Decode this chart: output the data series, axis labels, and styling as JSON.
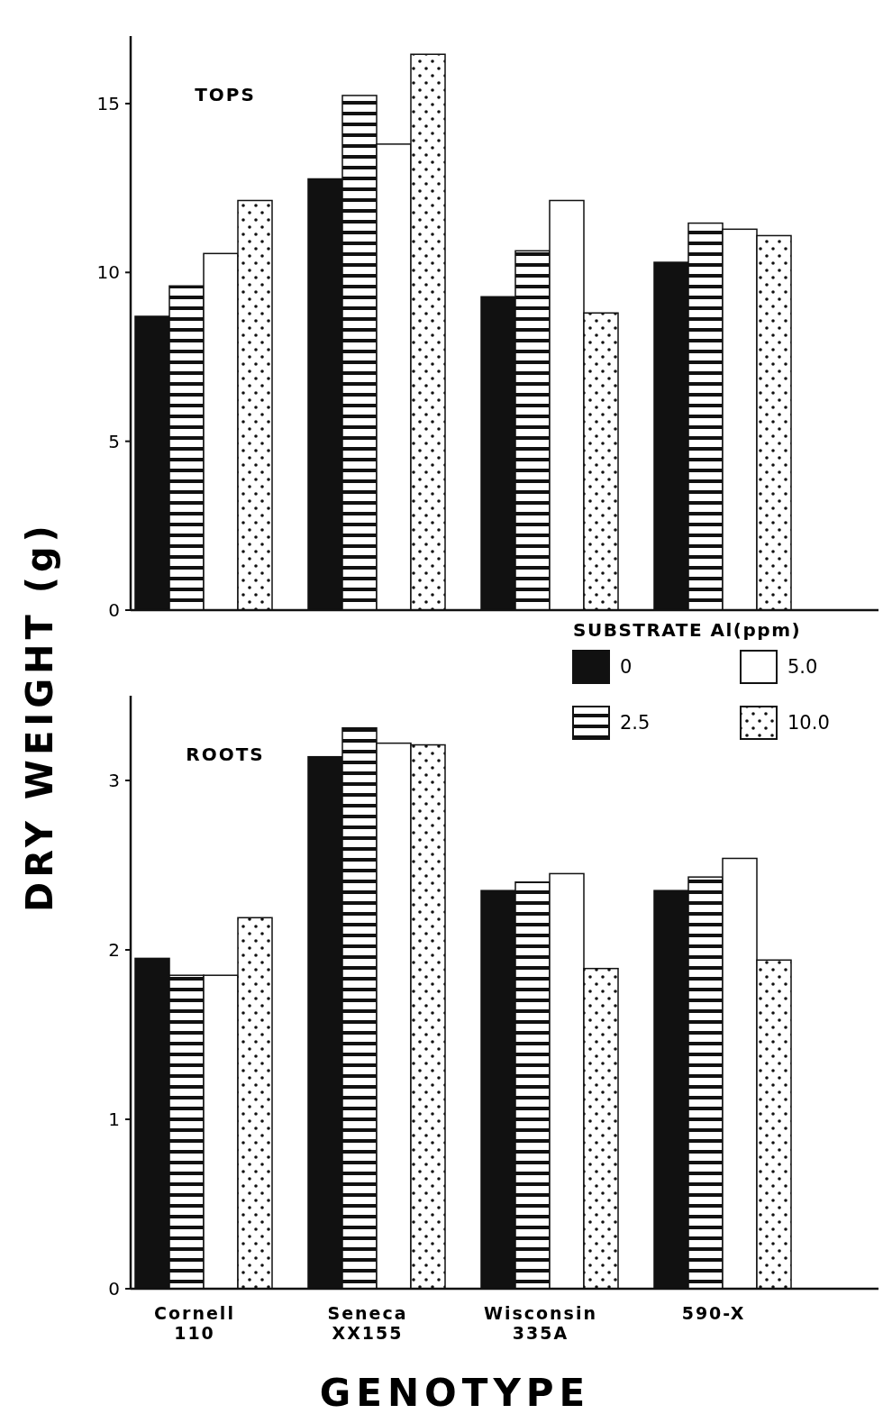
{
  "chart_data": [
    {
      "type": "bar",
      "title": "TOPS",
      "ylabel": "DRY WEIGHT (g)",
      "categories": [
        null,
        null,
        null,
        null
      ],
      "ylim": [
        0,
        17
      ],
      "yticks": [
        0,
        5,
        10,
        15
      ],
      "tick_labels": "y",
      "grid": false,
      "legend": false,
      "series": [
        {
          "color": "#111111",
          "values": [
            8.7,
            12.77,
            9.28,
            10.3
          ]
        },
        {
          "color": "#111111",
          "values": [
            9.6,
            15.24,
            10.64,
            11.46
          ]
        },
        {
          "color": "#ffffff",
          "values": [
            10.56,
            13.8,
            12.13,
            11.28
          ]
        },
        {
          "color": "#111111",
          "values": [
            12.13,
            16.46,
            8.8,
            11.09
          ]
        }
      ]
    },
    {
      "type": "bar",
      "title": "ROOTS",
      "xlabel": "GENOTYPE",
      "legend_title": "SUBSTRATE Al(ppm)",
      "categories": [
        "Cornell 110",
        "Seneca XX155",
        "Wisconsin 335A",
        "590-X"
      ],
      "ylim": [
        0,
        3.5
      ],
      "yticks": [
        0,
        1,
        2,
        3
      ],
      "grid": false,
      "legend": "top right",
      "series": [
        {
          "name": "0",
          "color": "#111111",
          "values": [
            1.95,
            3.14,
            2.35,
            2.35
          ]
        },
        {
          "name": "2.5",
          "color": "#111111",
          "values": [
            1.85,
            3.31,
            2.4,
            2.43
          ]
        },
        {
          "name": "5.0",
          "color": "#ffffff",
          "values": [
            1.85,
            3.22,
            2.45,
            2.54
          ]
        },
        {
          "name": "10.0",
          "color": "#111111",
          "values": [
            2.19,
            3.21,
            1.89,
            1.94
          ]
        }
      ]
    }
  ]
}
